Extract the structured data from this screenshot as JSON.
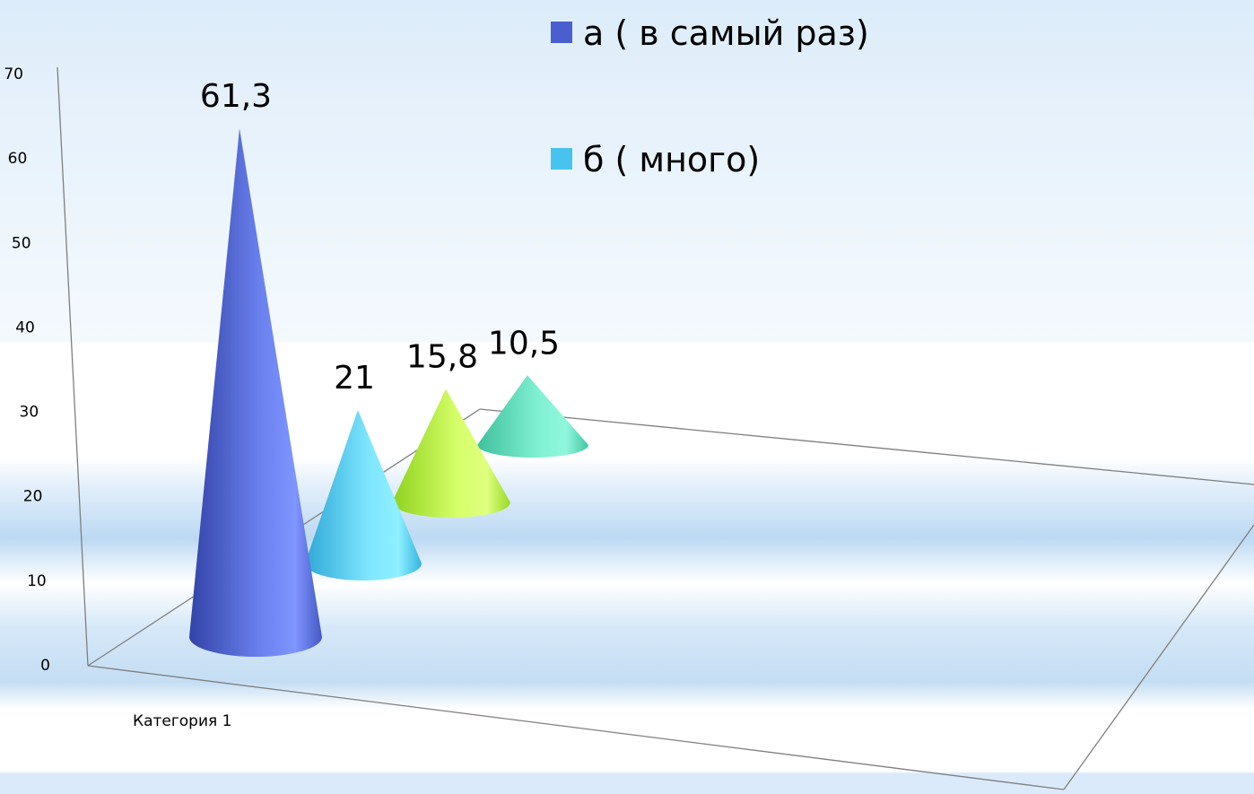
{
  "chart_data": {
    "type": "bar",
    "style": "3d-cone",
    "categories": [
      "Категория 1"
    ],
    "series": [
      {
        "name": "а ( в самый раз)",
        "values": [
          61.3
        ],
        "label": "61,3",
        "color": "#5a6fdc"
      },
      {
        "name": "б ( много)",
        "values": [
          21
        ],
        "label": "21",
        "color": "#4cc6ee"
      },
      {
        "name": "",
        "values": [
          15.8
        ],
        "label": "15,8",
        "color": "#b3ef3c"
      },
      {
        "name": "",
        "values": [
          10.5
        ],
        "label": "10,5",
        "color": "#5cdcb8"
      }
    ],
    "ylim": [
      0,
      70
    ],
    "yticks": [
      "0",
      "10",
      "20",
      "30",
      "40",
      "50",
      "60",
      "70"
    ],
    "title": "",
    "xlabel": "",
    "ylabel": "",
    "legend": {
      "position": "top",
      "entries": [
        "а ( в самый раз)",
        "б ( много)"
      ],
      "colors": [
        "#4a5ed0",
        "#47c4ee"
      ]
    }
  }
}
